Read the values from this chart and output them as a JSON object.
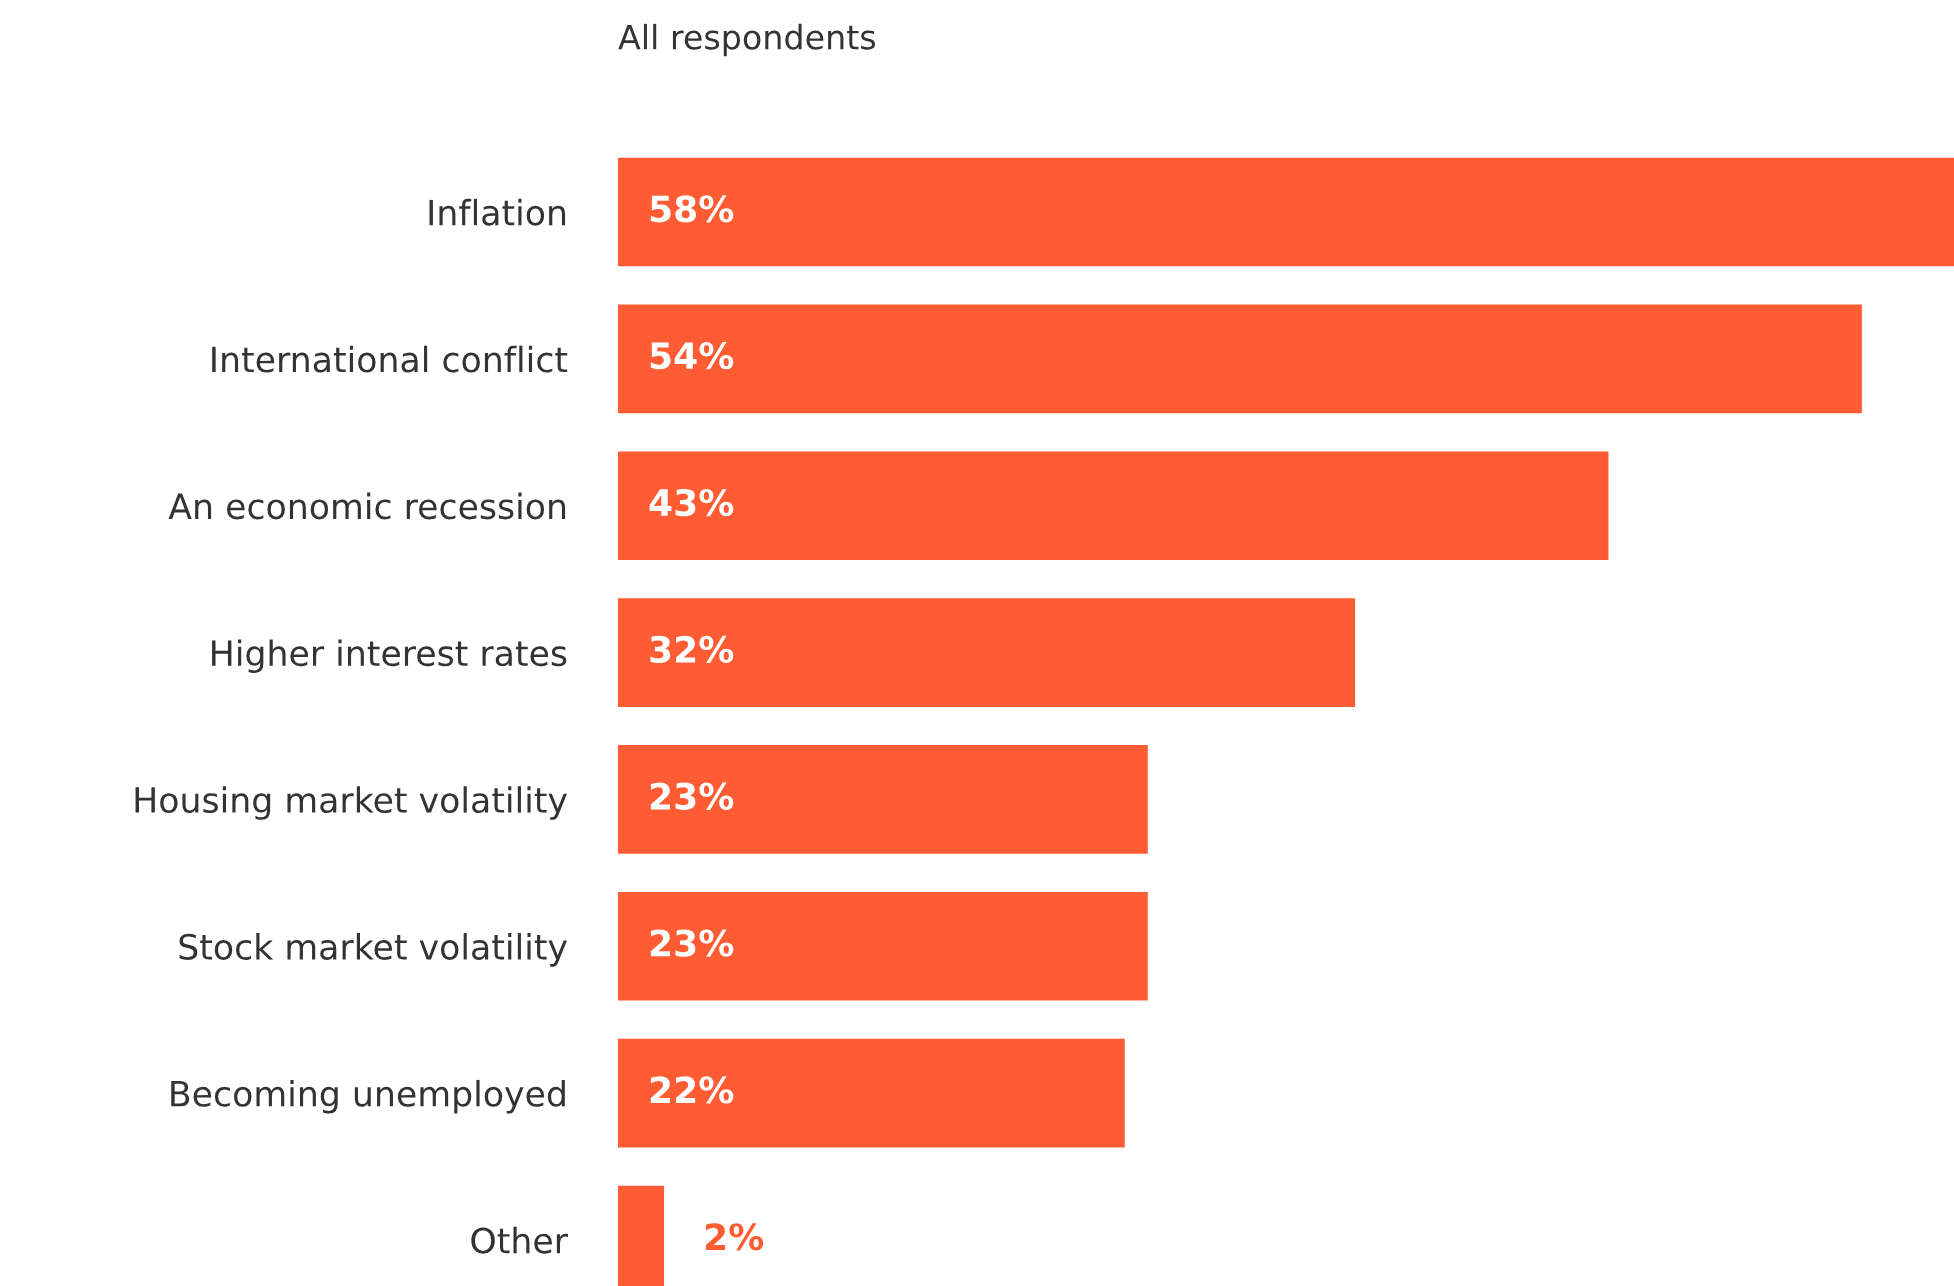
{
  "chart_data": {
    "type": "bar",
    "orientation": "horizontal",
    "title": "All respondents",
    "categories": [
      "Inflation",
      "International conflict",
      "An economic recession",
      "Higher interest rates",
      "Housing market volatility",
      "Stock market volatility",
      "Becoming unemployed",
      "Other"
    ],
    "values": [
      58,
      54,
      43,
      32,
      23,
      23,
      22,
      2
    ],
    "value_labels": [
      "58%",
      "54%",
      "43%",
      "32%",
      "23%",
      "23%",
      "22%",
      "2%"
    ],
    "color": "#ff5c33",
    "grid": false,
    "legend": false
  }
}
